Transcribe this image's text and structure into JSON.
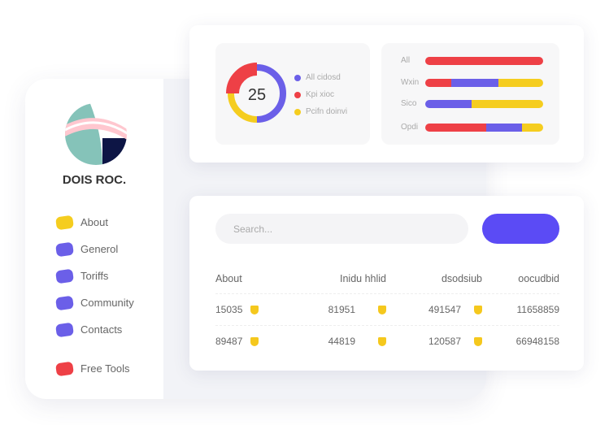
{
  "sidebar": {
    "brand": "DOIS ROC.",
    "items": [
      {
        "label": "About",
        "color": "#f5cd1f"
      },
      {
        "label": "Generol",
        "color": "#6b5fe8"
      },
      {
        "label": "Toriffs",
        "color": "#6b5fe8"
      },
      {
        "label": "Community",
        "color": "#6b5fe8"
      },
      {
        "label": "Contacts",
        "color": "#6b5fe8"
      },
      {
        "label": "Free Tools",
        "color": "#ee4046"
      }
    ]
  },
  "donut": {
    "value": "25",
    "segments": [
      {
        "name": "All cidosd",
        "percent": 50,
        "color": "#6b5fe8"
      },
      {
        "name": "Pcifn doinvi",
        "percent": 25,
        "color": "#f5cd1f"
      },
      {
        "name": "Kpi xioc",
        "percent": 25,
        "color": "#ee4046"
      }
    ],
    "legend": [
      {
        "label": "All cidosd",
        "color": "#6b5fe8"
      },
      {
        "label": "Kpi xioc",
        "color": "#ee4046"
      },
      {
        "label": "Pcifn doinvi",
        "color": "#f5cd1f"
      }
    ]
  },
  "bars": [
    {
      "label": "All",
      "segments": [
        {
          "color": "#ee4046",
          "percent": 100
        }
      ]
    },
    {
      "label": "Wxin",
      "segments": [
        {
          "color": "#ee4046",
          "percent": 22
        },
        {
          "color": "#6b5fe8",
          "percent": 40
        },
        {
          "color": "#f5cd1f",
          "percent": 38
        }
      ]
    },
    {
      "label": "Sico",
      "segments": [
        {
          "color": "#6b5fe8",
          "percent": 39
        },
        {
          "color": "#f5cd1f",
          "percent": 61
        }
      ]
    },
    {
      "label": "Opdi",
      "segments": [
        {
          "color": "#ee4046",
          "percent": 52
        },
        {
          "color": "#6b5fe8",
          "percent": 30
        },
        {
          "color": "#f5cd1f",
          "percent": 18
        }
      ]
    }
  ],
  "search": {
    "placeholder": "Search..."
  },
  "table": {
    "headers": [
      "About",
      "Inidu hhlid",
      "dsodsiub",
      "oocudbid"
    ],
    "rows": [
      [
        "15035",
        "81951",
        "491547",
        "11658859"
      ],
      [
        "89487",
        "44819",
        "120587",
        "66948158"
      ]
    ]
  }
}
